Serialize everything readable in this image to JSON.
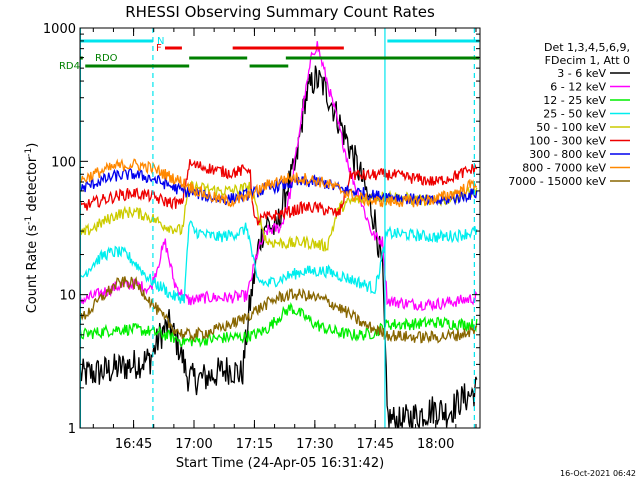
{
  "chart_data": {
    "type": "line",
    "title": "RHESSI Observing Summary Count Rates",
    "xlabel": "Start Time (24-Apr-05 16:31:42)",
    "ylabel_main": "Count Rate (s",
    "ylabel_sup1": "-1",
    "ylabel_mid": " detector",
    "ylabel_sup2": "-1",
    "ylabel_end": ")",
    "yscale": "log",
    "ylim": [
      1,
      1000
    ],
    "xlim": [
      16.5283,
      18.1833
    ],
    "x_ticks": [
      {
        "value": 16.75,
        "label": "16:45"
      },
      {
        "value": 17.0,
        "label": "17:00"
      },
      {
        "value": 17.25,
        "label": "17:15"
      },
      {
        "value": 17.5,
        "label": "17:30"
      },
      {
        "value": 17.75,
        "label": "17:45"
      },
      {
        "value": 18.0,
        "label": "18:00"
      }
    ],
    "y_ticks": [
      {
        "value": 1,
        "label": "1"
      },
      {
        "value": 10,
        "label": "10"
      },
      {
        "value": 100,
        "label": "100"
      },
      {
        "value": 1000,
        "label": "1000"
      }
    ],
    "legend_header": [
      "Det 1,3,4,5,6,9,",
      "FDecim 1, Att 0"
    ],
    "legend_placement": "right",
    "footer_date": "16-Oct-2021 06:42",
    "flags": [
      {
        "label": "N",
        "color": "#00e5ee",
        "y_level": 1,
        "segments": [
          [
            16.53,
            16.83
          ],
          [
            17.8,
            18.18
          ]
        ]
      },
      {
        "label": "F",
        "color": "#ee0000",
        "y_level": 2,
        "segments": [
          [
            16.88,
            16.95
          ],
          [
            17.16,
            17.62
          ]
        ]
      },
      {
        "label": "RDO",
        "color": "#008000",
        "y_level": 3,
        "segments": [
          [
            16.53,
            16.54
          ],
          [
            16.98,
            17.22
          ],
          [
            17.38,
            18.18
          ]
        ]
      },
      {
        "label": "RD4",
        "color": "#008000",
        "y_level": 4,
        "segments": [
          [
            16.55,
            16.98
          ],
          [
            17.23,
            17.39
          ]
        ]
      }
    ],
    "vlines": [
      {
        "x": 16.53,
        "style": "solid"
      },
      {
        "x": 16.83,
        "style": "dashed"
      },
      {
        "x": 17.79,
        "style": "solid"
      },
      {
        "x": 18.16,
        "style": "dashed"
      }
    ],
    "series": [
      {
        "name": "3 - 6 keV",
        "color": "#000000",
        "x": [
          16.53,
          16.6,
          16.68,
          16.75,
          16.82,
          16.86,
          16.9,
          16.95,
          16.97,
          17.0,
          17.05,
          17.1,
          17.15,
          17.2,
          17.23,
          17.27,
          17.3,
          17.34,
          17.38,
          17.42,
          17.46,
          17.5,
          17.53,
          17.56,
          17.6,
          17.65,
          17.7,
          17.75,
          17.78,
          17.8,
          17.85,
          17.9,
          17.95,
          18.0,
          18.05,
          18.1,
          18.15,
          18.17
        ],
        "y": [
          2.5,
          2.6,
          2.8,
          3.0,
          3.3,
          5,
          6,
          3.5,
          2.5,
          2.3,
          2.4,
          2.6,
          2.8,
          2.5,
          8,
          25,
          35,
          30,
          60,
          90,
          300,
          420,
          380,
          300,
          200,
          120,
          70,
          35,
          15,
          1.2,
          1.1,
          1.2,
          1.3,
          1.4,
          1.3,
          1.6,
          1.8,
          2.0
        ]
      },
      {
        "name": "6 - 12 keV",
        "color": "#ff00ff",
        "x": [
          16.53,
          16.6,
          16.68,
          16.75,
          16.82,
          16.88,
          16.92,
          16.96,
          16.98,
          17.05,
          17.15,
          17.22,
          17.26,
          17.3,
          17.36,
          17.4,
          17.45,
          17.49,
          17.51,
          17.55,
          17.6,
          17.65,
          17.7,
          17.74,
          17.78,
          17.8,
          17.9,
          18.0,
          18.1,
          18.17
        ],
        "y": [
          9,
          10,
          11.5,
          12,
          11,
          25,
          12,
          9.5,
          9,
          9.5,
          9.5,
          9.8,
          20,
          30,
          32,
          60,
          250,
          650,
          750,
          400,
          180,
          80,
          45,
          28,
          25,
          9,
          8.5,
          8.5,
          9,
          9.5
        ]
      },
      {
        "name": "12 - 25 keV",
        "color": "#00ee00",
        "x": [
          16.53,
          16.6,
          16.68,
          16.75,
          16.82,
          16.88,
          16.95,
          17.0,
          17.05,
          17.1,
          17.15,
          17.2,
          17.25,
          17.3,
          17.36,
          17.4,
          17.45,
          17.5,
          17.55,
          17.6,
          17.65,
          17.7,
          17.75,
          17.8,
          17.9,
          18.0,
          18.1,
          18.17
        ],
        "y": [
          5,
          5.2,
          5.5,
          5.5,
          5.3,
          5,
          4.5,
          4.5,
          4.6,
          4.7,
          4.8,
          4.8,
          5,
          5.5,
          7,
          8,
          7,
          6,
          5.5,
          5.2,
          5,
          5,
          5.2,
          6,
          6,
          6.2,
          6,
          6
        ]
      },
      {
        "name": "25 - 50 keV",
        "color": "#00eeee",
        "x": [
          16.53,
          16.58,
          16.63,
          16.68,
          16.72,
          16.76,
          16.8,
          16.84,
          16.88,
          16.9,
          16.93,
          16.96,
          16.98,
          17.0,
          17.05,
          17.1,
          17.15,
          17.2,
          17.22,
          17.26,
          17.3,
          17.35,
          17.4,
          17.45,
          17.5,
          17.55,
          17.6,
          17.65,
          17.7,
          17.75,
          17.8,
          17.9,
          18.0,
          18.1,
          18.17
        ],
        "y": [
          13,
          17,
          20,
          21,
          20,
          17,
          14,
          12,
          11,
          10,
          9.5,
          9.5,
          35,
          30,
          28,
          27,
          28,
          30,
          32,
          13,
          12,
          13,
          14,
          15,
          15,
          15,
          14,
          13,
          12,
          11,
          29,
          28,
          27,
          28,
          30
        ]
      },
      {
        "name": "50 - 100 keV",
        "color": "#cccc00",
        "x": [
          16.53,
          16.6,
          16.68,
          16.75,
          16.82,
          16.88,
          16.95,
          16.98,
          17.05,
          17.1,
          17.15,
          17.2,
          17.23,
          17.3,
          17.4,
          17.45,
          17.5,
          17.55,
          17.6,
          17.65,
          17.7,
          17.8,
          17.9,
          18.0,
          18.1,
          18.17
        ],
        "y": [
          28,
          33,
          40,
          42,
          38,
          33,
          30,
          65,
          62,
          60,
          60,
          62,
          65,
          25,
          24,
          25,
          24,
          23,
          45,
          50,
          52,
          55,
          52,
          50,
          55,
          60
        ]
      },
      {
        "name": "100 - 300 keV",
        "color": "#ee0000",
        "x": [
          16.53,
          16.6,
          16.68,
          16.75,
          16.82,
          16.88,
          16.95,
          16.98,
          17.05,
          17.1,
          17.15,
          17.2,
          17.23,
          17.25,
          17.3,
          17.4,
          17.45,
          17.5,
          17.55,
          17.6,
          17.65,
          17.7,
          17.8,
          17.9,
          18.0,
          18.1,
          18.17
        ],
        "y": [
          45,
          50,
          55,
          58,
          55,
          50,
          48,
          95,
          90,
          85,
          82,
          85,
          90,
          35,
          38,
          42,
          45,
          45,
          43,
          40,
          80,
          78,
          80,
          75,
          70,
          80,
          90
        ]
      },
      {
        "name": "300 - 800 keV",
        "color": "#0000ee",
        "x": [
          16.53,
          16.6,
          16.68,
          16.75,
          16.82,
          16.88,
          16.95,
          17.0,
          17.05,
          17.1,
          17.15,
          17.2,
          17.25,
          17.3,
          17.35,
          17.4,
          17.45,
          17.5,
          17.55,
          17.6,
          17.65,
          17.7,
          17.75,
          17.8,
          17.9,
          18.0,
          18.1,
          18.17
        ],
        "y": [
          62,
          70,
          78,
          80,
          75,
          68,
          60,
          58,
          55,
          52,
          52,
          55,
          58,
          62,
          66,
          68,
          70,
          70,
          68,
          62,
          60,
          58,
          55,
          55,
          52,
          50,
          54,
          58
        ]
      },
      {
        "name": "800 - 7000 keV",
        "color": "#ff8800",
        "x": [
          16.53,
          16.6,
          16.68,
          16.75,
          16.82,
          16.88,
          16.95,
          17.0,
          17.05,
          17.1,
          17.15,
          17.2,
          17.25,
          17.3,
          17.35,
          17.4,
          17.45,
          17.5,
          17.55,
          17.6,
          17.65,
          17.7,
          17.75,
          17.8,
          17.9,
          18.0,
          18.1,
          18.17
        ],
        "y": [
          72,
          82,
          92,
          95,
          90,
          80,
          70,
          62,
          56,
          52,
          50,
          52,
          58,
          66,
          72,
          75,
          75,
          72,
          68,
          62,
          56,
          52,
          50,
          50,
          50,
          52,
          60,
          70
        ]
      },
      {
        "name": "7000 - 15000 keV",
        "color": "#886600",
        "x": [
          16.53,
          16.58,
          16.63,
          16.68,
          16.72,
          16.76,
          16.8,
          16.84,
          16.88,
          16.92,
          16.96,
          17.0,
          17.05,
          17.1,
          17.15,
          17.2,
          17.25,
          17.3,
          17.35,
          17.4,
          17.45,
          17.5,
          17.55,
          17.6,
          17.65,
          17.7,
          17.75,
          17.8,
          17.9,
          18.0,
          18.1,
          18.17
        ],
        "y": [
          6.5,
          8,
          10,
          12,
          12.5,
          12,
          10,
          8,
          6.5,
          5.5,
          5,
          5,
          5.2,
          5.5,
          6,
          6.5,
          7.5,
          8.5,
          9.5,
          10,
          10,
          9.5,
          9,
          8,
          7,
          6,
          5.5,
          5,
          4.8,
          4.8,
          5,
          5.5
        ]
      }
    ]
  }
}
